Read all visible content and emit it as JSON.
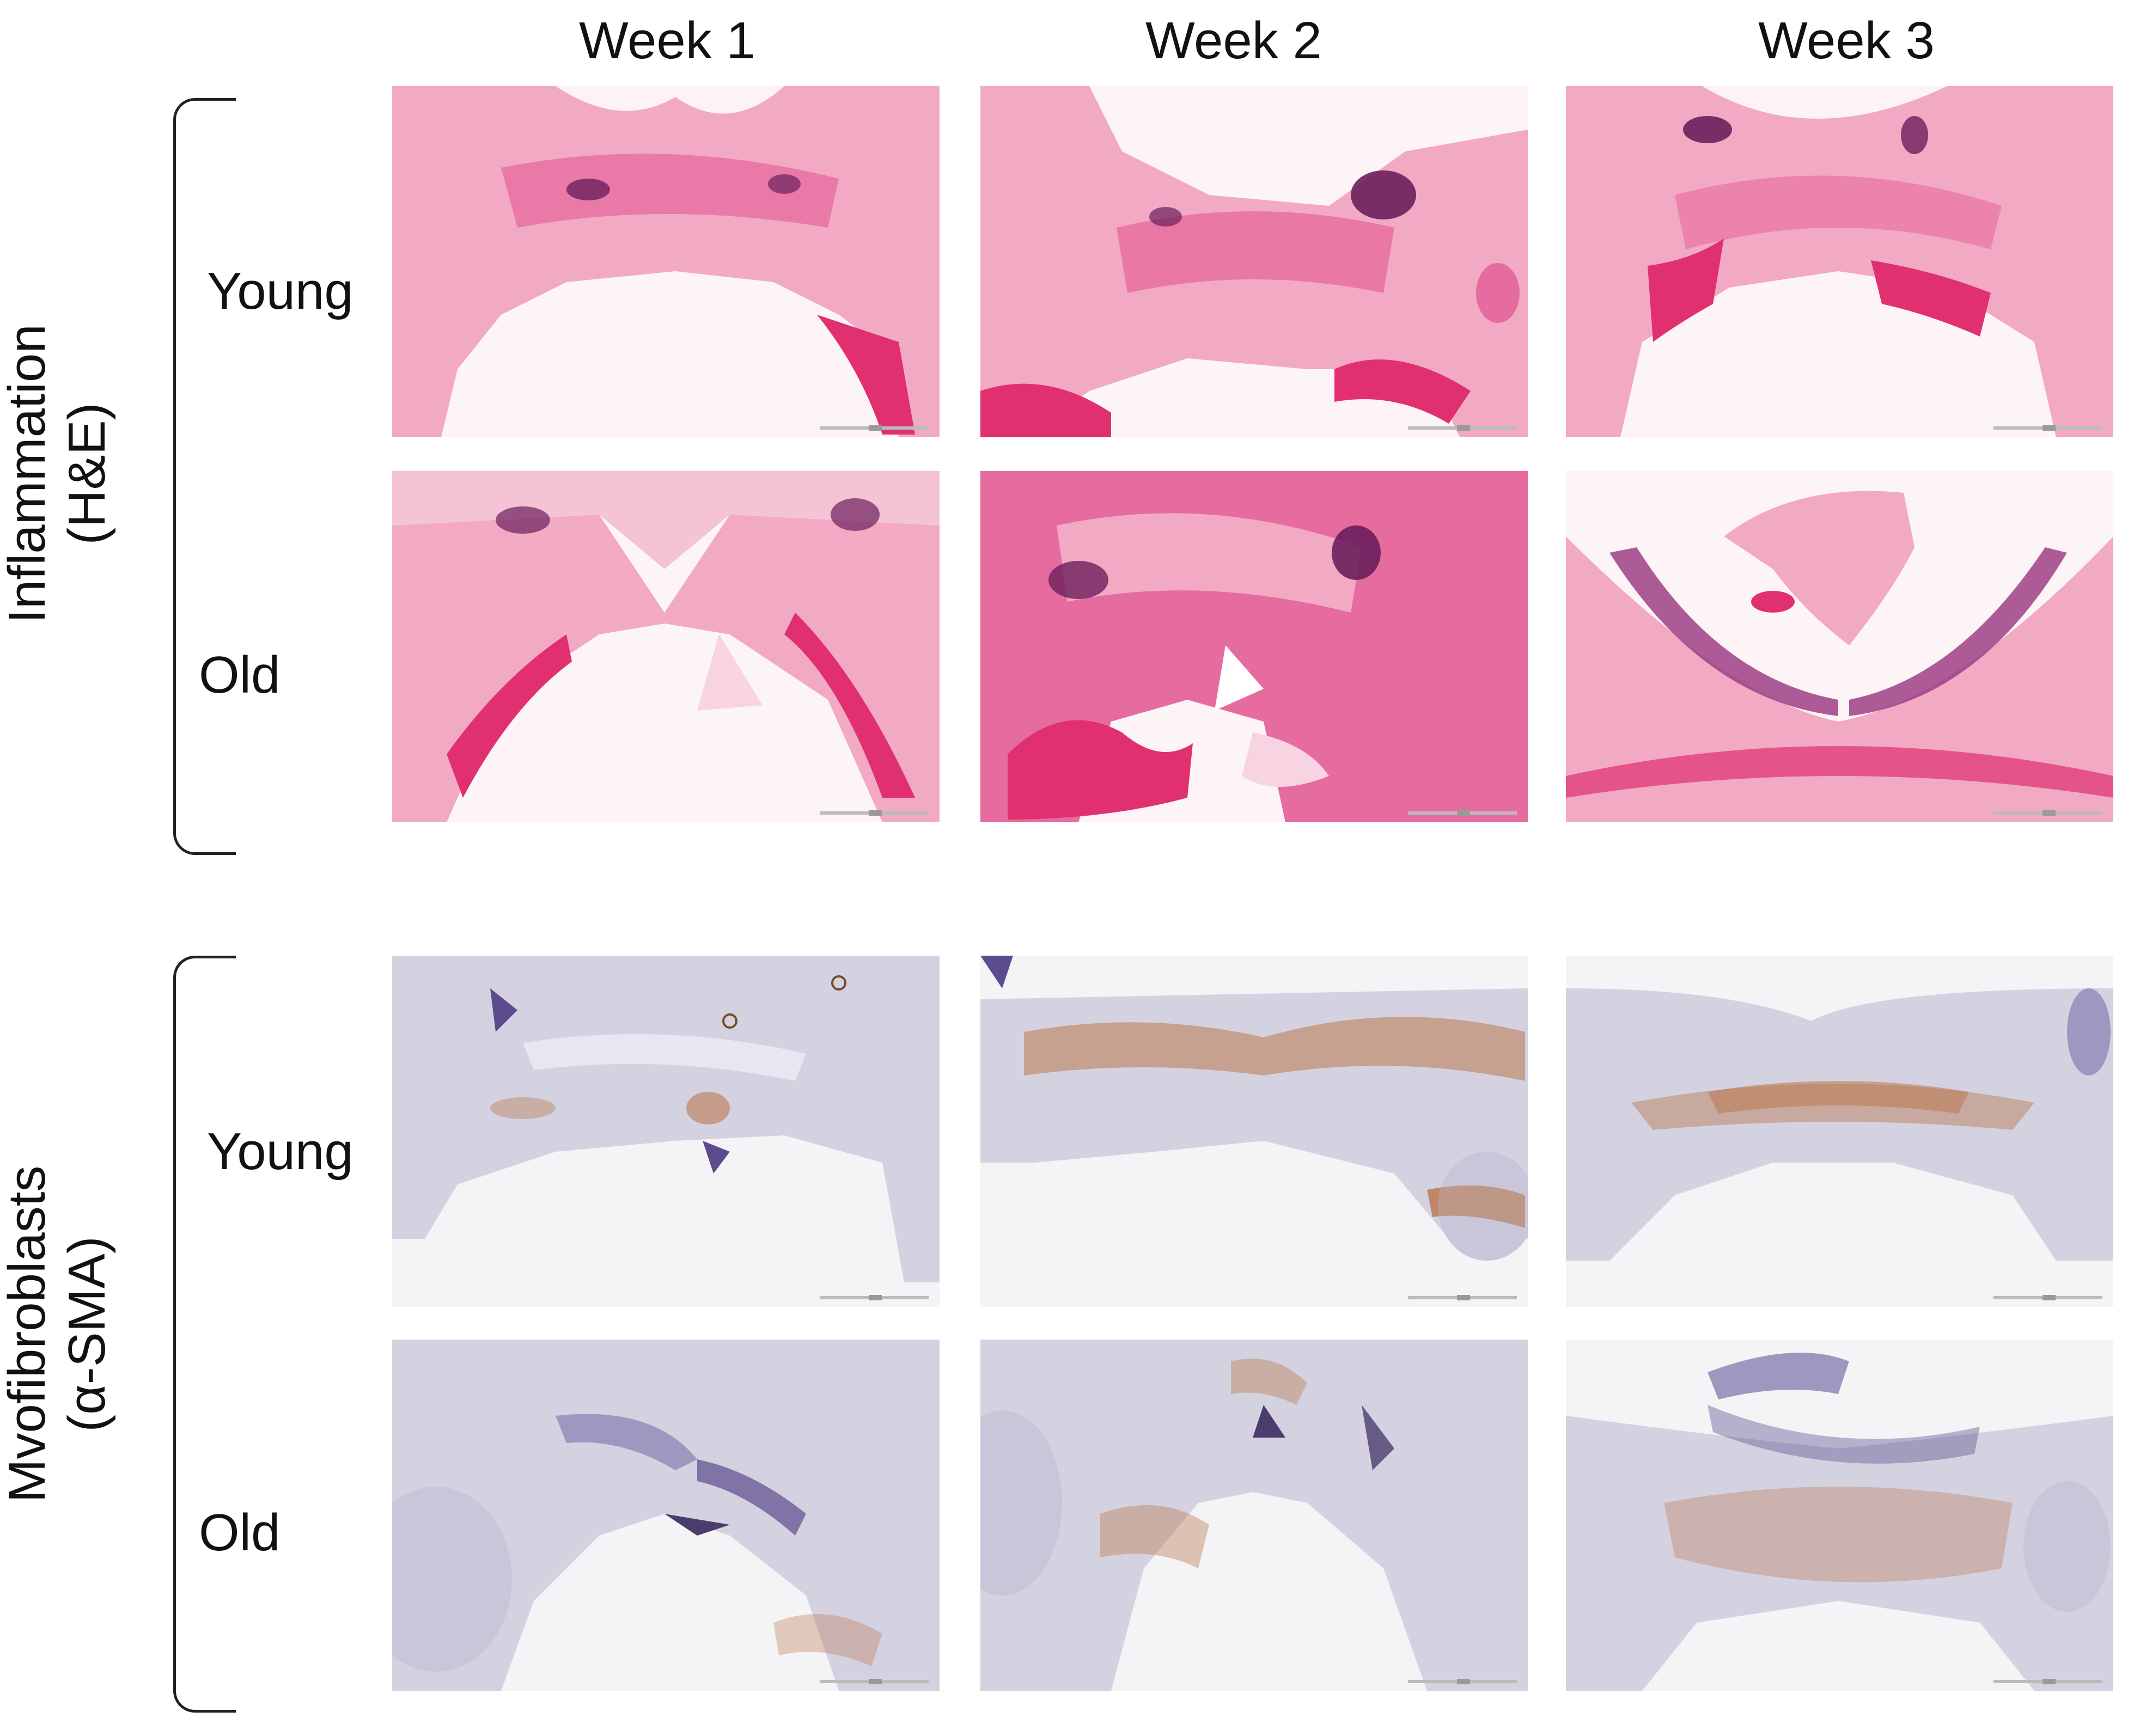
{
  "columns": [
    "Week 1",
    "Week 2",
    "Week 3"
  ],
  "sections": [
    {
      "label_line1": "Inflammation",
      "label_line2": "(H&E)",
      "rows": [
        "Young",
        "Old"
      ],
      "stain": "H&E",
      "colors": {
        "background": "#ffffff",
        "tissue": "#f2a9c4",
        "tissue_dark": "#e66b9e",
        "nuclei": "#6b1f5c",
        "edge": "#e0306f"
      }
    },
    {
      "label_line1": "Mvofibroblasts",
      "label_line2": "(α-SMA)",
      "rows": [
        "Young",
        "Old"
      ],
      "stain": "α-SMA",
      "colors": {
        "background": "#f4f4f6",
        "tissue": "#d4d2e0",
        "tissue_dark": "#9e98c0",
        "nuclei": "#5c4c8e",
        "stain_positive": "#b9784f"
      }
    }
  ]
}
